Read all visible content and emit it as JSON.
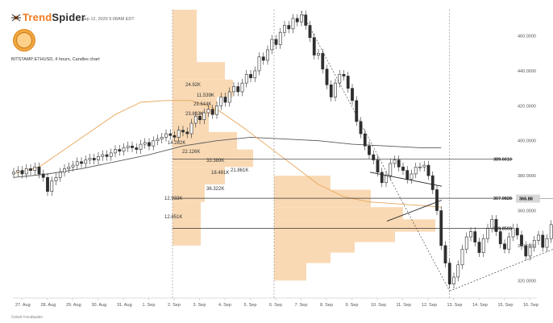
{
  "header": {
    "brand_part1": "Trend",
    "brand_part2": "Spider",
    "timestamp": "Sep 12, 2020 5:08AM EDT",
    "symbol_line": "BITSTAMP:ETHUSD, 4 hours, Candles chart",
    "copyright": "©2020 TrendSpider",
    "logo_icon": "spider-logo-icon",
    "badge_icon": "circular-badge-icon"
  },
  "colors": {
    "bull": "#2e2e2e",
    "bear": "#2e2e2e",
    "profile": "#f9d9b4",
    "ma_short": "#e8a85c",
    "ma_long": "#5a5a5a",
    "price_box": "#d8d8d8",
    "level_line": "#333333"
  },
  "chart_data": {
    "type": "candlestick",
    "y_axis_ticks": [
      320,
      340,
      360,
      380,
      400,
      420,
      440,
      460
    ],
    "y_axis_tick_labels": [
      "320.0000",
      "340.0000",
      "360.0000",
      "380.0000",
      "400.0000",
      "420.0000",
      "440.0000",
      "460.0000"
    ],
    "ylim": [
      310,
      475
    ],
    "x_axis_labels": [
      "27. Aug",
      "28. Aug",
      "29. Aug",
      "30. Aug",
      "31. Aug",
      "1. Sep",
      "2. Sep",
      "3. Sep",
      "4. Sep",
      "5. Sep",
      "6. Sep",
      "7. Sep",
      "8. Sep",
      "9. Sep",
      "10. Sep",
      "11. Sep",
      "12. Sep",
      "13. Sep",
      "14. Sep",
      "15. Sep",
      "16. Sep"
    ],
    "levels": [
      {
        "value": 389.601,
        "label": "389.6010"
      },
      {
        "value": 367.0828,
        "label": "367.0828"
      },
      {
        "value": 349.8503,
        "label": "349.8503"
      }
    ],
    "current_price": {
      "value": 366.88,
      "label": "366.88"
    },
    "vertical_markers_day_index": [
      6,
      10,
      16.9
    ],
    "volume_profile_labels": [
      "24.92K",
      "11.539K",
      "29.644K",
      "23.832K",
      "14.282K",
      "22.126K",
      "33.389K",
      "18.481K",
      "21.861K",
      "36.322K",
      "12.933K",
      "12.851K"
    ],
    "candles_per_day": 6,
    "closes": [
      382,
      383,
      381,
      384,
      383,
      385,
      381,
      379,
      371,
      377,
      379,
      382,
      384,
      385,
      386,
      388,
      387,
      389,
      390,
      389,
      391,
      392,
      391,
      393,
      395,
      394,
      396,
      397,
      396,
      395,
      398,
      399,
      397,
      400,
      401,
      402,
      404,
      403,
      402,
      406,
      405,
      404,
      410,
      414,
      412,
      416,
      418,
      415,
      420,
      425,
      422,
      428,
      431,
      428,
      433,
      438,
      436,
      440,
      448,
      446,
      452,
      458,
      455,
      462,
      466,
      464,
      470,
      468,
      472,
      466,
      459,
      449,
      450,
      441,
      432,
      425,
      433,
      438,
      437,
      430,
      423,
      411,
      404,
      397,
      392,
      389,
      382,
      376,
      380,
      387,
      389,
      385,
      383,
      378,
      381,
      385,
      385,
      386,
      380,
      372,
      360,
      340,
      330,
      318,
      322,
      329,
      338,
      345,
      348,
      342,
      336,
      344,
      350,
      355,
      348,
      341,
      338,
      345,
      350,
      346,
      340,
      334,
      339,
      343,
      346,
      339,
      344,
      352,
      356,
      351,
      345,
      339,
      336,
      341,
      346,
      350,
      357,
      363,
      369,
      364,
      359,
      365,
      371,
      368,
      363,
      358,
      356,
      361,
      366,
      371,
      370,
      366,
      369,
      367,
      366.88
    ],
    "ma_short": {
      "name": "",
      "points": [
        [
          0,
          381
        ],
        [
          6,
          385
        ],
        [
          12,
          395
        ],
        [
          18,
          405
        ],
        [
          24,
          415
        ],
        [
          30,
          422
        ],
        [
          36,
          423
        ],
        [
          42,
          423
        ],
        [
          48,
          418
        ],
        [
          54,
          408
        ],
        [
          60,
          397
        ],
        [
          66,
          386
        ],
        [
          72,
          375
        ],
        [
          78,
          368
        ],
        [
          84,
          365
        ],
        [
          90,
          364
        ],
        [
          96,
          363
        ],
        [
          101,
          362
        ]
      ]
    },
    "ma_long": {
      "name": "",
      "points": [
        [
          0,
          379
        ],
        [
          8,
          381
        ],
        [
          16,
          384
        ],
        [
          24,
          388
        ],
        [
          32,
          392
        ],
        [
          40,
          397
        ],
        [
          48,
          400
        ],
        [
          56,
          402
        ],
        [
          64,
          401
        ],
        [
          72,
          400
        ],
        [
          80,
          398
        ],
        [
          88,
          397
        ],
        [
          96,
          396
        ],
        [
          101,
          396
        ]
      ]
    },
    "triangle": {
      "upper": [
        [
          459,
          382
        ],
        [
          548,
          374
        ]
      ],
      "lower": [
        [
          480,
          354
        ],
        [
          548,
          366
        ]
      ]
    }
  }
}
